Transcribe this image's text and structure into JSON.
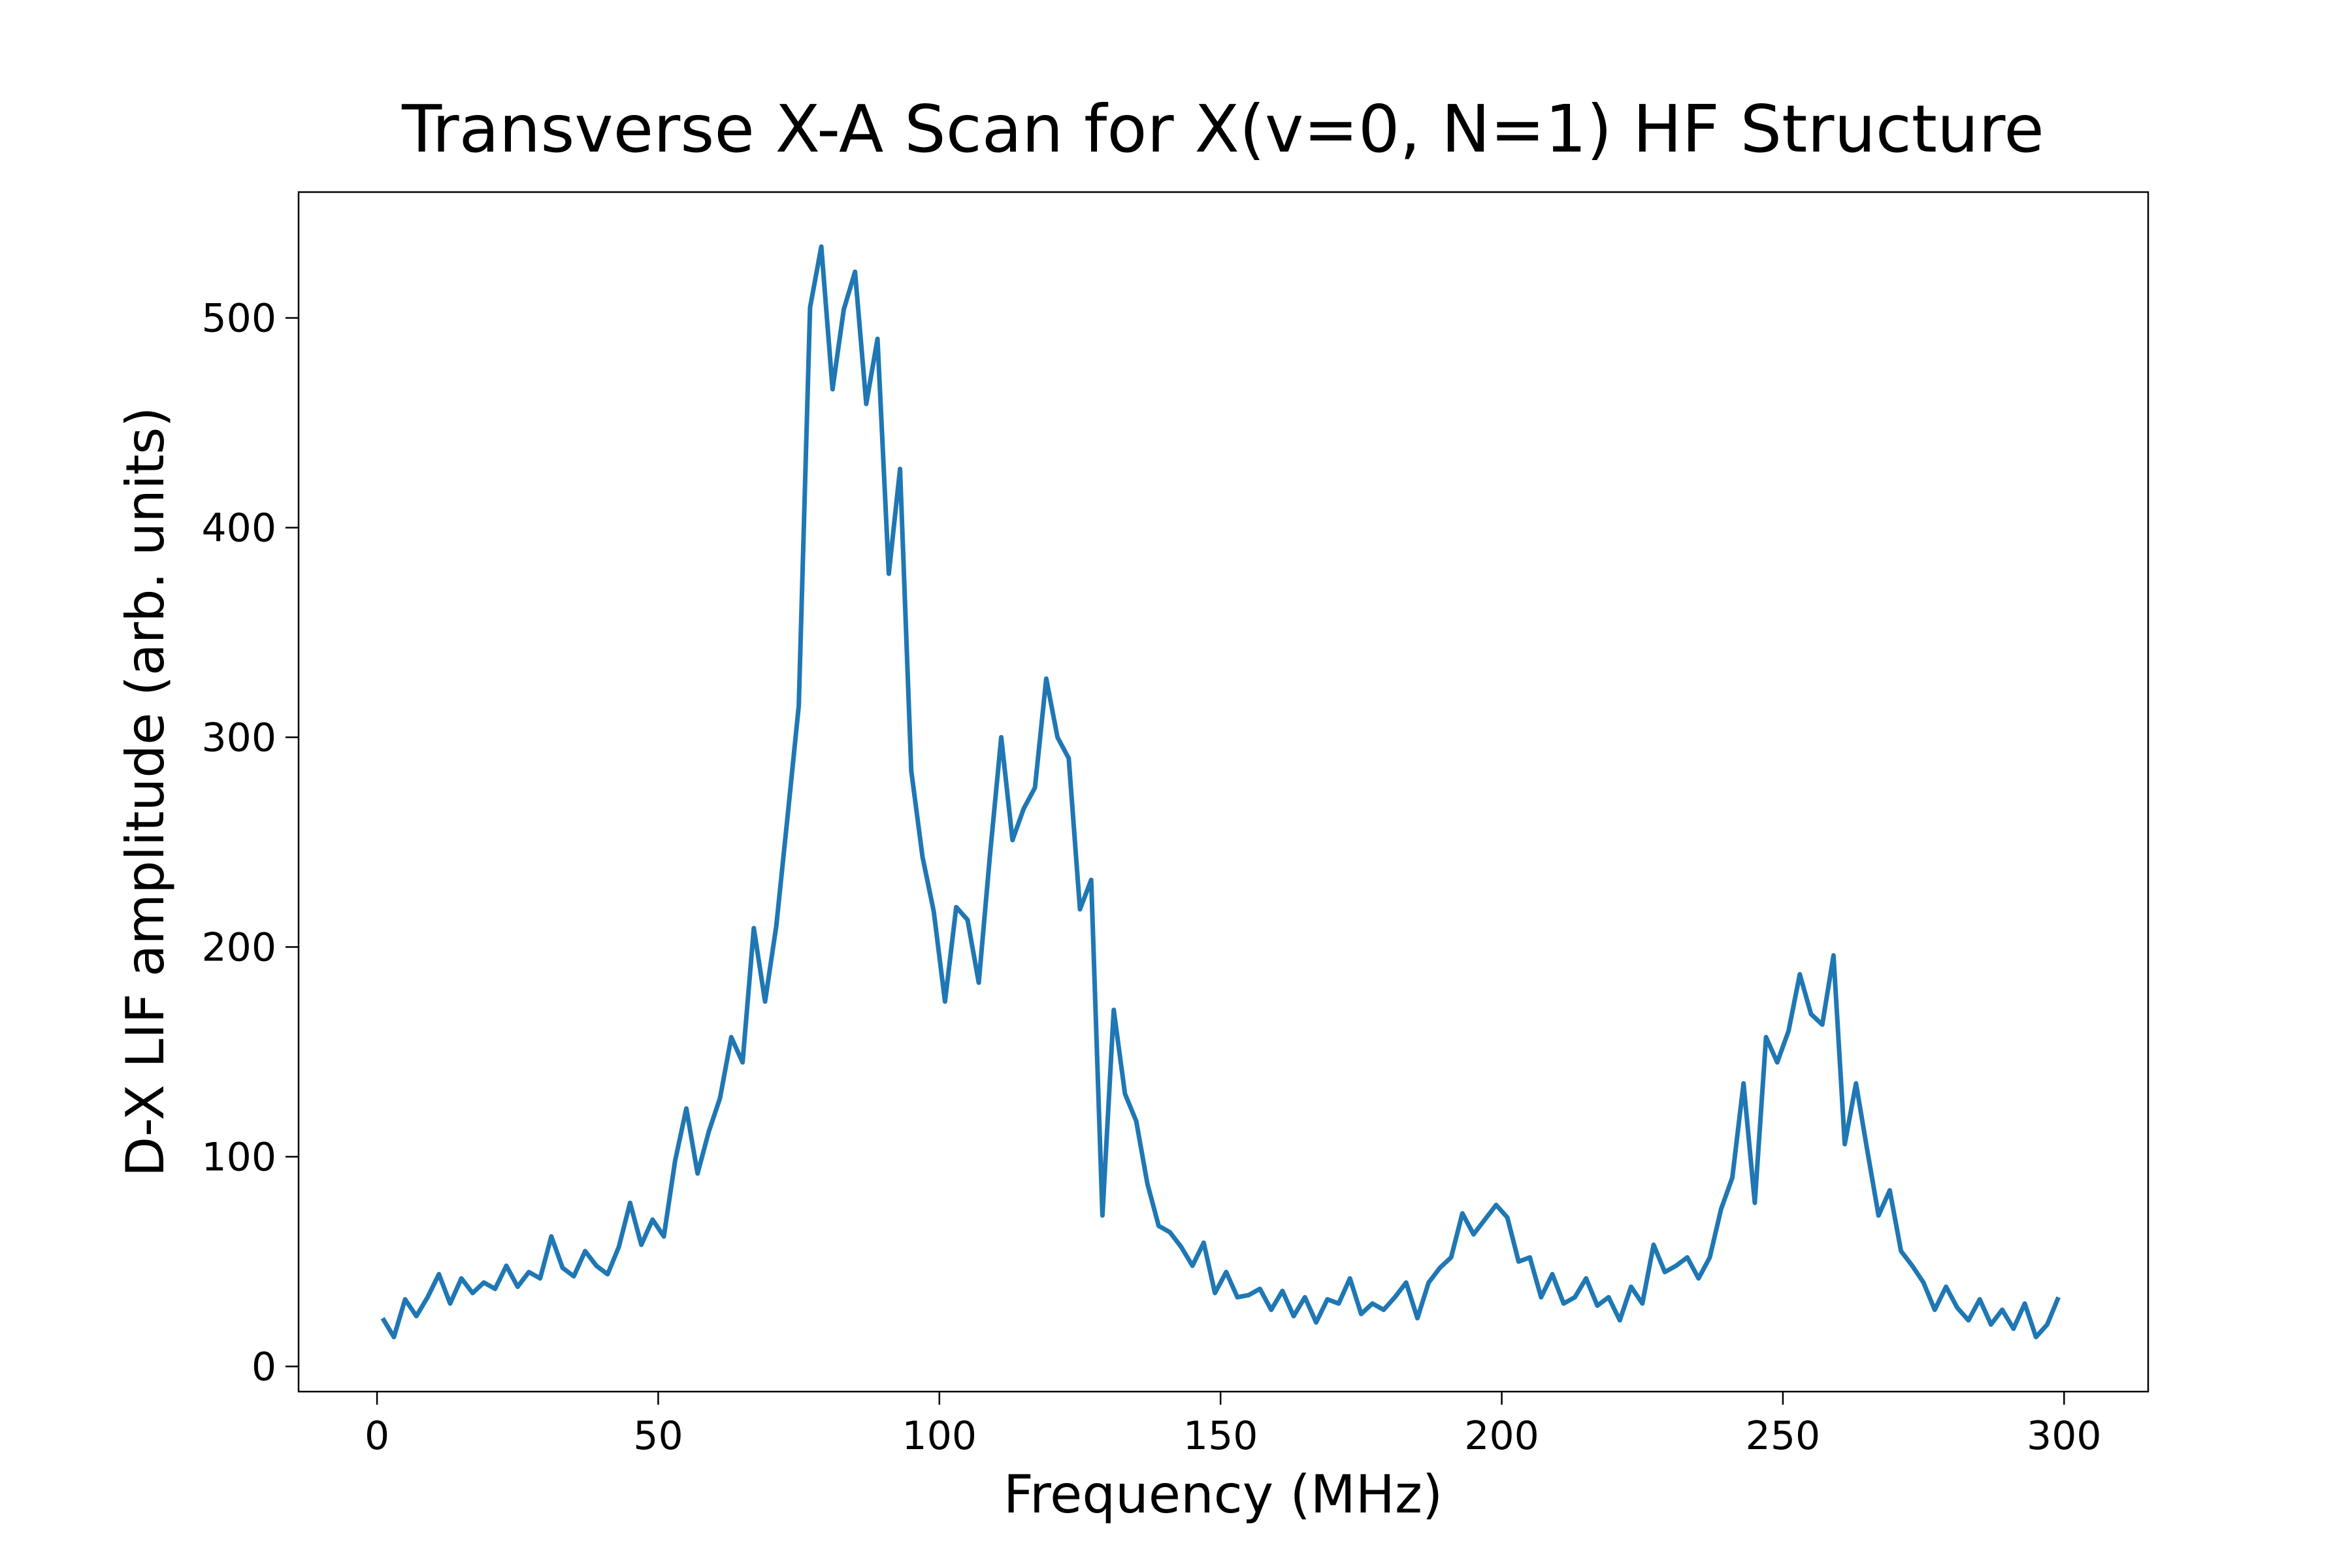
{
  "chart_data": {
    "type": "line",
    "title": "Transverse X-A Scan for X(v=0, N=1) HF Structure",
    "x_label": "Frequency (MHz)",
    "y_label": "D-X LIF amplitude (arb. units)",
    "x": [
      1,
      3,
      5,
      7,
      9,
      11,
      13,
      15,
      17,
      19,
      21,
      23,
      25,
      27,
      29,
      31,
      33,
      35,
      37,
      39,
      41,
      43,
      45,
      47,
      49,
      51,
      53,
      55,
      57,
      59,
      61,
      63,
      65,
      67,
      69,
      71,
      73,
      75,
      77,
      79,
      81,
      83,
      85,
      87,
      89,
      91,
      93,
      95,
      97,
      99,
      101,
      103,
      105,
      107,
      109,
      111,
      113,
      115,
      117,
      119,
      121,
      123,
      125,
      127,
      129,
      131,
      133,
      135,
      137,
      139,
      141,
      143,
      145,
      147,
      149,
      151,
      153,
      155,
      157,
      159,
      161,
      163,
      165,
      167,
      169,
      171,
      173,
      175,
      177,
      179,
      181,
      183,
      185,
      187,
      189,
      191,
      193,
      195,
      197,
      199,
      201,
      203,
      205,
      207,
      209,
      211,
      213,
      215,
      217,
      219,
      221,
      223,
      225,
      227,
      229,
      231,
      233,
      235,
      237,
      239,
      241,
      243,
      245,
      247,
      249,
      251,
      253,
      255,
      257,
      259,
      261,
      263,
      265,
      267,
      269,
      271,
      273,
      275,
      277,
      279,
      281,
      283,
      285,
      287,
      289,
      291,
      293,
      295,
      297,
      299
    ],
    "series": [
      {
        "name": "D-X LIF",
        "color": "#1f77b4",
        "values": [
          23,
          14,
          32,
          24,
          33,
          44,
          30,
          42,
          35,
          40,
          37,
          48,
          38,
          45,
          42,
          62,
          47,
          43,
          55,
          48,
          44,
          57,
          78,
          58,
          70,
          62,
          98,
          123,
          92,
          112,
          128,
          157,
          145,
          209,
          174,
          210,
          262,
          315,
          505,
          534,
          466,
          504,
          522,
          459,
          490,
          378,
          428,
          284,
          243,
          217,
          174,
          219,
          213,
          183,
          244,
          300,
          251,
          266,
          276,
          328,
          300,
          290,
          218,
          232,
          72,
          170,
          130,
          117,
          87,
          67,
          64,
          57,
          48,
          59,
          35,
          45,
          33,
          34,
          37,
          27,
          36,
          24,
          33,
          21,
          32,
          30,
          42,
          25,
          30,
          27,
          33,
          40,
          23,
          40,
          47,
          52,
          73,
          63,
          70,
          77,
          71,
          50,
          52,
          33,
          44,
          30,
          33,
          42,
          29,
          33,
          22,
          38,
          30,
          58,
          45,
          48,
          52,
          42,
          52,
          75,
          90,
          135,
          78,
          157,
          145,
          160,
          187,
          168,
          163,
          196,
          106,
          135,
          103,
          72,
          84,
          55,
          48,
          40,
          27,
          38,
          28,
          22,
          32,
          20,
          27,
          18,
          30,
          14,
          20,
          33
        ]
      }
    ],
    "xlim": [
      -13.95,
      314.95
    ],
    "ylim": [
      -12,
      560
    ],
    "xticks": [
      0,
      50,
      100,
      150,
      200,
      250,
      300
    ],
    "yticks": [
      0,
      100,
      200,
      300,
      400,
      500
    ]
  }
}
